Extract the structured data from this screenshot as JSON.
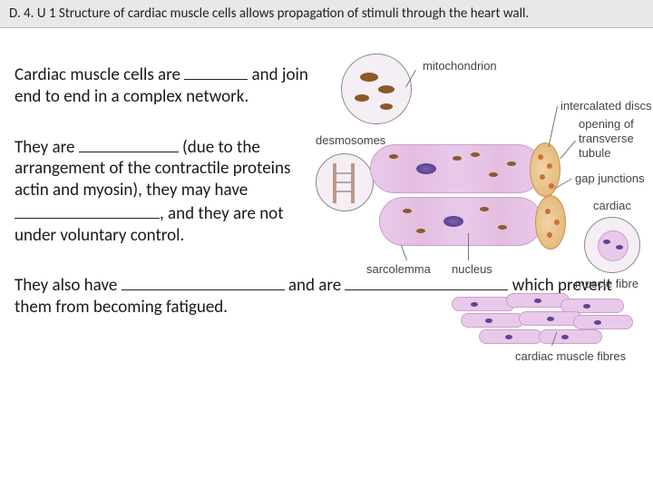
{
  "header": {
    "text": "D. 4. U 1 Structure of cardiac muscle cells allows propagation of stimuli through the heart wall."
  },
  "paragraphs": {
    "p1_a": "Cardiac muscle cells are ",
    "p1_b": " and  join end to end in a complex network.",
    "p2_a": "They are ",
    "p2_b": " (due to the arrangement of the contractile proteins actin and myosin), they may have ",
    "p2_c": ", and they are not under voluntary control.",
    "p3_a": "They also have ",
    "p3_b": " and are ",
    "p3_c": " which prevent them from becoming fatigued."
  },
  "blanks": {
    "b1_width": 70,
    "b2_width": 110,
    "b3_width": 160,
    "b4_width": 180,
    "b5_width": 180
  },
  "diagram": {
    "labels": {
      "mitochondrion": "mitochondrion",
      "desmosomes": "desmosomes",
      "intercalated": "intercalated discs",
      "opening": "opening of",
      "transverse": "transverse",
      "tubule": "tubule",
      "gap": "gap junctions",
      "cardiac": "cardiac",
      "muscle_fibre": "muscle fibre",
      "sarcolemma": "sarcolemma",
      "nucleus": "nucleus",
      "fibres": "cardiac muscle fibres"
    },
    "colors": {
      "fibre_fill": "#e9c9e9",
      "fibre_border": "#c9a0c9",
      "nucleus": "#5b4590",
      "mito": "#8a5a2a",
      "disc": "#e6bb7e",
      "label_text": "#444444",
      "leader": "#777777",
      "background": "#ffffff"
    }
  }
}
